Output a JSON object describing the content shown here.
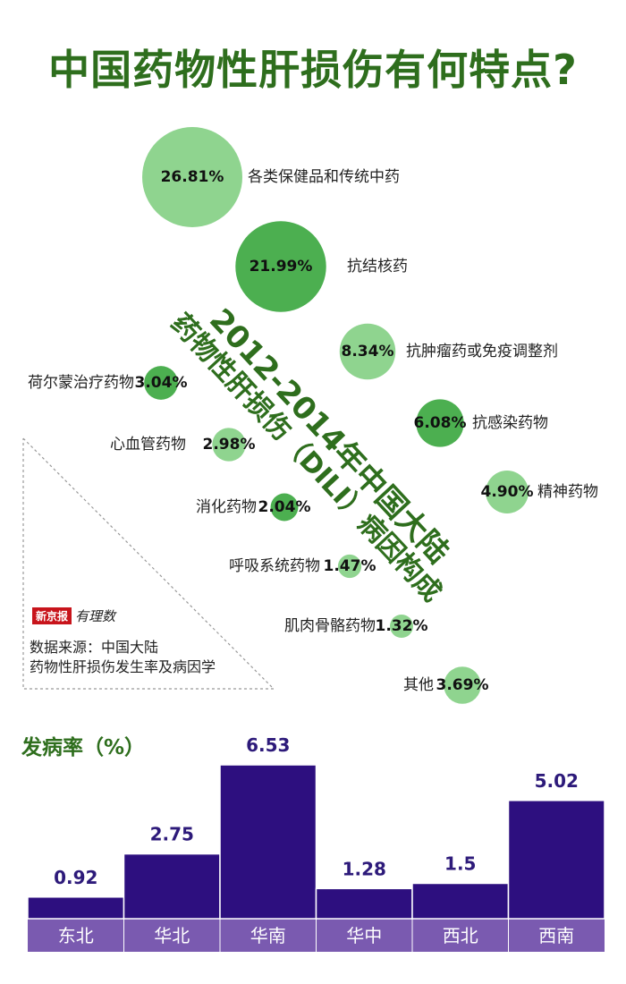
{
  "title": "中国药物性肝损伤有何特点?",
  "diagonal": {
    "line1": "2012-2014年中国大陆",
    "line2": "药物性肝损伤（DILI）病因构成"
  },
  "source": {
    "brand": "新京报",
    "brand_script": "有理数",
    "line1": "数据来源：中国大陆",
    "line2": "药物性肝损伤发生率及病因学"
  },
  "colors": {
    "title_green": "#2e6e1d",
    "bubble_dark": "#4caf50",
    "bubble_light": "#8fd48f",
    "bar": "#2d0f7f",
    "axis_band": "#7a5ab0"
  },
  "chart_data": [
    {
      "type": "bubble",
      "title": "2012-2014年中国大陆药物性肝损伤（DILI）病因构成",
      "unit": "%",
      "items": [
        {
          "category": "各类保健品和传统中药",
          "value": 26.81,
          "value_label": "26.81%",
          "shade": "light"
        },
        {
          "category": "抗结核药",
          "value": 21.99,
          "value_label": "21.99%",
          "shade": "dark"
        },
        {
          "category": "抗肿瘤药或免疫调整剂",
          "value": 8.34,
          "value_label": "8.34%",
          "shade": "light"
        },
        {
          "category": "荷尔蒙治疗药物",
          "value": 3.04,
          "value_label": "3.04%",
          "shade": "dark"
        },
        {
          "category": "抗感染药物",
          "value": 6.08,
          "value_label": "6.08%",
          "shade": "dark"
        },
        {
          "category": "心血管药物",
          "value": 2.98,
          "value_label": "2.98%",
          "shade": "light"
        },
        {
          "category": "精神药物",
          "value": 4.9,
          "value_label": "4.90%",
          "shade": "light"
        },
        {
          "category": "消化药物",
          "value": 2.04,
          "value_label": "2.04%",
          "shade": "dark"
        },
        {
          "category": "呼吸系统药物",
          "value": 1.47,
          "value_label": "1.47%",
          "shade": "light"
        },
        {
          "category": "肌肉骨骼药物",
          "value": 1.32,
          "value_label": "1.32%",
          "shade": "light"
        },
        {
          "category": "其他",
          "value": 3.69,
          "value_label": "3.69%",
          "shade": "light"
        }
      ]
    },
    {
      "type": "bar",
      "ylabel": "发病率（%）",
      "categories": [
        "东北",
        "华北",
        "华南",
        "华中",
        "西北",
        "西南"
      ],
      "values": [
        0.92,
        2.75,
        6.53,
        1.28,
        1.5,
        5.02
      ],
      "value_labels": [
        "0.92",
        "2.75",
        "6.53",
        "1.28",
        "1.5",
        "5.02"
      ],
      "ylim": [
        0,
        7
      ]
    }
  ]
}
